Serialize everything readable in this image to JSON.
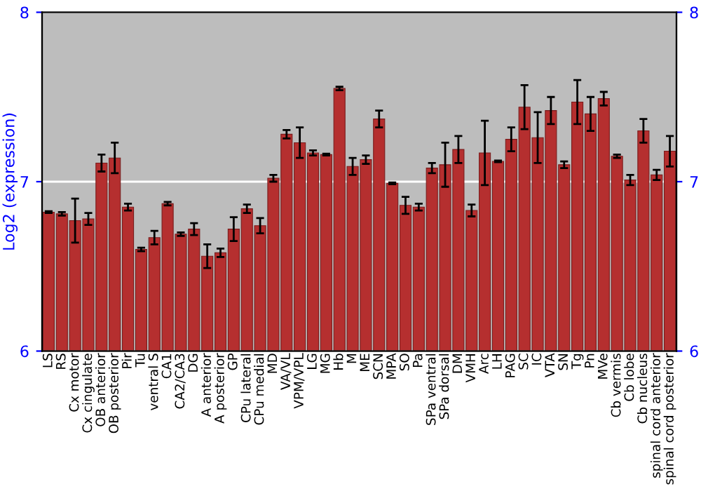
{
  "chart_data": {
    "type": "bar",
    "ylabel": "Log2 (expression)",
    "categories": [
      "LS",
      "RS",
      "Cx motor",
      "Cx cingulate",
      "OB anterior",
      "OB posterior",
      "Pir",
      "Tu",
      "ventral S",
      "CA1",
      "CA2/CA3",
      "DG",
      "A anterior",
      "A posterior",
      "GP",
      "CPu lateral",
      "CPu medial",
      "MD",
      "VA/VL",
      "VPM/VPL",
      "LG",
      "MG",
      "Hb",
      "M",
      "ME",
      "SCN",
      "MPA",
      "SO",
      "Pa",
      "SPa ventral",
      "SPa dorsal",
      "DM",
      "VMH",
      "Arc",
      "LH",
      "PAG",
      "SC",
      "IC",
      "VTA",
      "SN",
      "Tg",
      "Pn",
      "MVe",
      "Cb vermis",
      "Cb lobe",
      "Cb nucleus",
      "spinal cord anterior",
      "spinal cord posterior"
    ],
    "values": [
      6.82,
      6.81,
      6.77,
      6.78,
      7.11,
      7.14,
      6.85,
      6.6,
      6.67,
      6.87,
      6.69,
      6.72,
      6.56,
      6.58,
      6.72,
      6.84,
      6.74,
      7.02,
      7.28,
      7.23,
      7.17,
      7.16,
      7.55,
      7.09,
      7.13,
      7.37,
      6.99,
      6.86,
      6.85,
      7.08,
      7.1,
      7.19,
      6.83,
      7.17,
      7.12,
      7.25,
      7.44,
      7.26,
      7.42,
      7.1,
      7.47,
      7.4,
      7.49,
      7.15,
      7.01,
      7.3,
      7.04,
      7.18
    ],
    "errors": [
      0.005,
      0.01,
      0.13,
      0.035,
      0.05,
      0.09,
      0.02,
      0.01,
      0.04,
      0.01,
      0.01,
      0.035,
      0.07,
      0.025,
      0.07,
      0.025,
      0.045,
      0.02,
      0.025,
      0.09,
      0.015,
      0.005,
      0.01,
      0.05,
      0.025,
      0.05,
      0.005,
      0.05,
      0.02,
      0.03,
      0.13,
      0.08,
      0.035,
      0.19,
      0.005,
      0.07,
      0.13,
      0.15,
      0.08,
      0.02,
      0.13,
      0.1,
      0.04,
      0.01,
      0.03,
      0.07,
      0.03,
      0.09
    ],
    "color": "#b52f2f",
    "ylim": [
      6,
      8
    ],
    "yticks": [
      6,
      7,
      8
    ],
    "y2lim": [
      6,
      8
    ],
    "y2ticks": [
      6,
      7,
      8
    ],
    "grid": "y",
    "legend": false
  }
}
